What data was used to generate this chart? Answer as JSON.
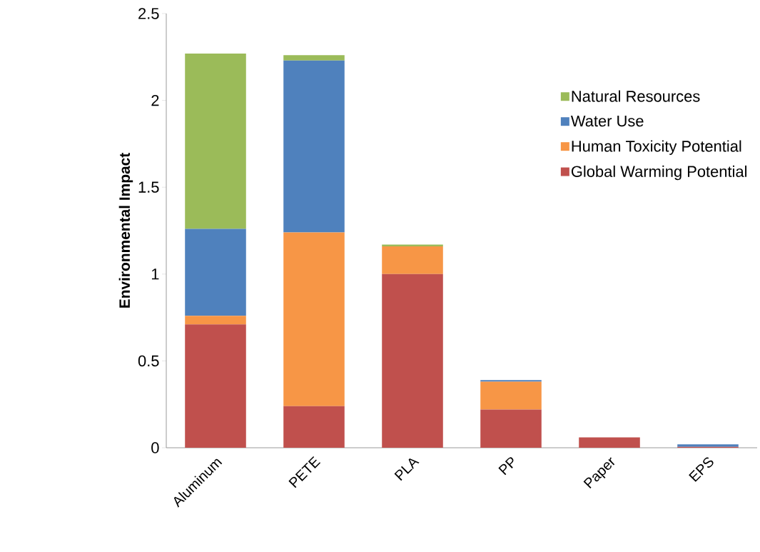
{
  "chart_data": {
    "type": "bar",
    "stacked": true,
    "ylabel": "Environmental Impact",
    "categories": [
      "Aluminum",
      "PETE",
      "PLA",
      "PP",
      "Paper",
      "EPS"
    ],
    "series": [
      {
        "name": "Global Warming Potential",
        "color": "#c0504d",
        "values": [
          0.71,
          0.24,
          1.0,
          0.22,
          0.06,
          0.005
        ]
      },
      {
        "name": "Human Toxicity Potential",
        "color": "#f79646",
        "values": [
          0.05,
          1.0,
          0.16,
          0.16,
          0,
          0
        ]
      },
      {
        "name": "Water Use",
        "color": "#4f81bd",
        "values": [
          0.5,
          0.99,
          0,
          0.01,
          0,
          0.015
        ]
      },
      {
        "name": "Natural Resources",
        "color": "#9bbb59",
        "values": [
          1.01,
          0.03,
          0.01,
          0,
          0,
          0
        ]
      }
    ],
    "ylim": [
      0,
      2.5
    ],
    "yticks": [
      0,
      0.5,
      1,
      1.5,
      2,
      2.5
    ],
    "legend": "right"
  }
}
